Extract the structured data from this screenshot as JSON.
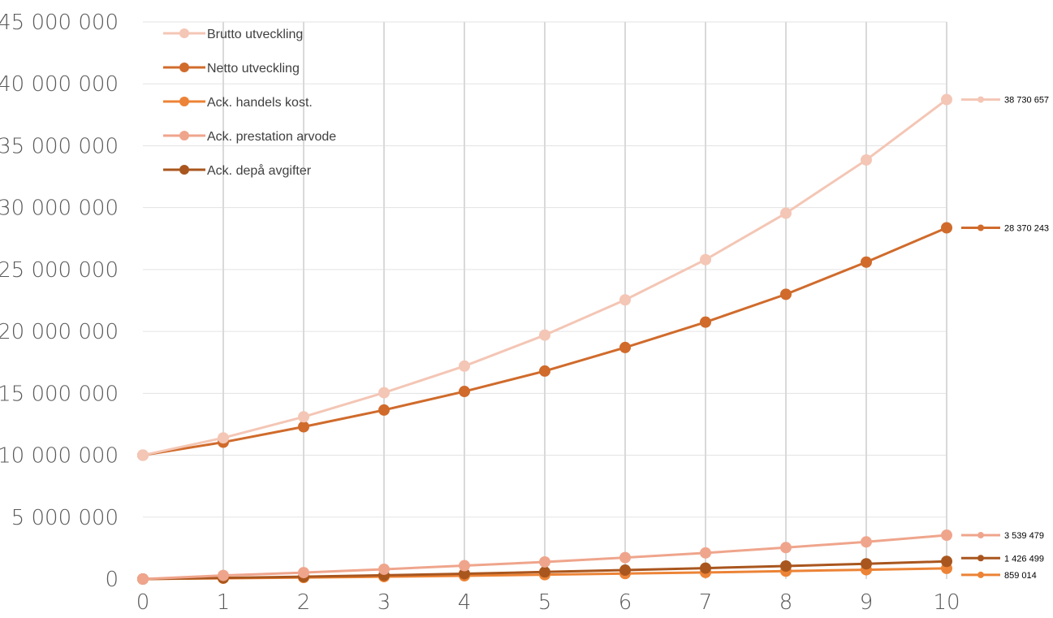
{
  "chart_data": {
    "type": "line",
    "title": "",
    "xlabel": "",
    "ylabel": "",
    "x": [
      0,
      1,
      2,
      3,
      4,
      5,
      6,
      7,
      8,
      9,
      10
    ],
    "x_tick_labels": [
      "0",
      "1",
      "2",
      "3",
      "4",
      "5",
      "6",
      "7",
      "8",
      "9",
      "10"
    ],
    "ylim": [
      0,
      45000000
    ],
    "y_tick_labels": [
      "0",
      "5 000 000",
      "10 000 000",
      "15 000 000",
      "20 000 000",
      "25 000 000",
      "30 000 000",
      "35 000 000",
      "40 000 000",
      "45 000 000"
    ],
    "grid": {
      "vertical": true,
      "horizontal": true
    },
    "legend_position": "top-left",
    "series": [
      {
        "name": "Brutto utveckling",
        "color": "#F4C6B5",
        "values": [
          10000000,
          11400000,
          13100000,
          15050000,
          17200000,
          19700000,
          22550000,
          25800000,
          29550000,
          33850000,
          38730657
        ],
        "end_label": "38 730 657"
      },
      {
        "name": "Netto utveckling",
        "color": "#D06B2C",
        "values": [
          10000000,
          11050000,
          12300000,
          13650000,
          15150000,
          16800000,
          18700000,
          20750000,
          23000000,
          25600000,
          28370243
        ],
        "end_label": "28 370 243"
      },
      {
        "name": "Ack. handels kost.",
        "color": "#EC8336",
        "values": [
          0,
          60000,
          120000,
          190000,
          260000,
          350000,
          440000,
          530000,
          640000,
          750000,
          859014
        ],
        "end_label": "859 014"
      },
      {
        "name": "Ack. prestation arvode",
        "color": "#EFA58C",
        "values": [
          0,
          290000,
          520000,
          790000,
          1080000,
          1380000,
          1730000,
          2110000,
          2540000,
          3000000,
          3539479
        ],
        "end_label": "3 539 479"
      },
      {
        "name": "Ack. depå avgifter",
        "color": "#A9561E",
        "values": [
          0,
          90000,
          190000,
          300000,
          430000,
          570000,
          720000,
          880000,
          1050000,
          1230000,
          1426499
        ],
        "end_label": "1 426 499"
      }
    ]
  }
}
